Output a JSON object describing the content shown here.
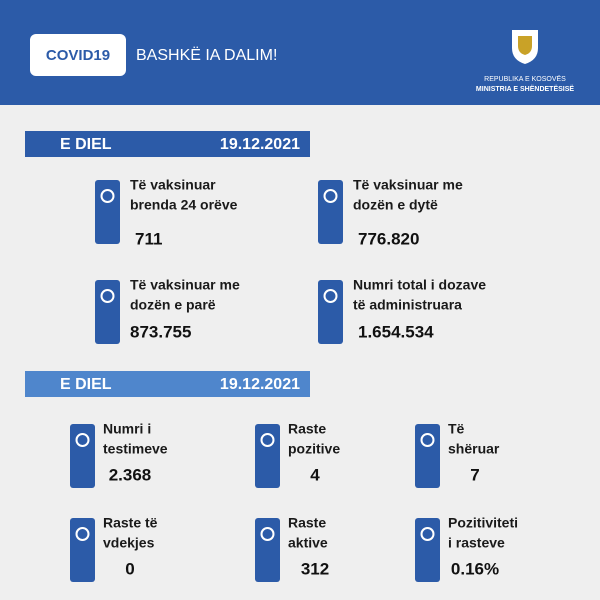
{
  "header": {
    "badge": "COVID19",
    "slogan": "BASHKË IA DALIM!",
    "org_line1": "REPUBLIKA E KOSOVËS",
    "org_line2": "MINISTRIA E SHËNDETËSISË"
  },
  "vaccination": {
    "day": "E DIEL",
    "date": "19.12.2021",
    "items": [
      {
        "label": [
          "Të vaksinuar",
          "brenda 24 orëve"
        ],
        "value": "711"
      },
      {
        "label": [
          "Të vaksinuar me",
          "dozën e dytë"
        ],
        "value": "776.820"
      },
      {
        "label": [
          "Të vaksinuar me",
          "dozën e parë"
        ],
        "value": "873.755"
      },
      {
        "label": [
          "Numri total i dozave",
          "të administruara"
        ],
        "value": "1.654.534"
      }
    ]
  },
  "testing": {
    "day": "E DIEL",
    "date": "19.12.2021",
    "items": [
      {
        "label": [
          "Numri i",
          "testimeve"
        ],
        "value": "2.368"
      },
      {
        "label": [
          "Raste",
          "pozitive"
        ],
        "value": "4"
      },
      {
        "label": [
          "Të",
          "shëruar"
        ],
        "value": "7"
      },
      {
        "label": [
          "Raste të",
          "vdekjes"
        ],
        "value": "0"
      },
      {
        "label": [
          "Raste",
          "aktive"
        ],
        "value": "312"
      },
      {
        "label": [
          "Pozitiviteti",
          "i rasteve"
        ],
        "value": "0.16%"
      }
    ]
  }
}
